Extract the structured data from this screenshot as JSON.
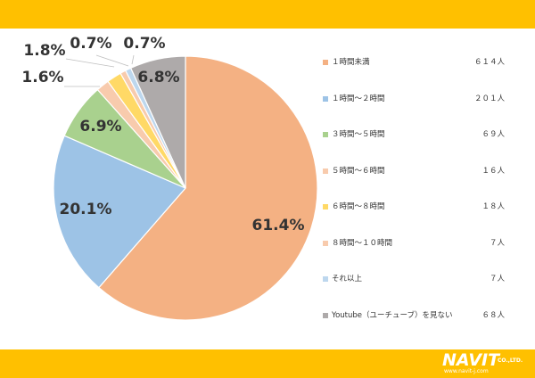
{
  "chart_data": {
    "type": "pie",
    "title": "",
    "start_angle_deg": 0,
    "direction": "clockwise",
    "slices": [
      {
        "label": "１時間未満",
        "count_label": "６１４人",
        "value": 61.4,
        "pct_label": "61.4%",
        "color": "#f4b183"
      },
      {
        "label": "１時間～２時間",
        "count_label": "２０１人",
        "value": 20.1,
        "pct_label": "20.1%",
        "color": "#9dc3e6"
      },
      {
        "label": "３時間～５時間",
        "count_label": "６９人",
        "value": 6.9,
        "pct_label": "6.9%",
        "color": "#a9d18e"
      },
      {
        "label": "５時間～６時間",
        "count_label": "１６人",
        "value": 1.6,
        "pct_label": "1.6%",
        "color": "#f8cbad"
      },
      {
        "label": "６時間～８時間",
        "count_label": "１８人",
        "value": 1.8,
        "pct_label": "1.8%",
        "color": "#ffd966"
      },
      {
        "label": "８時間～１０時間",
        "count_label": "７人",
        "value": 0.7,
        "pct_label": "0.7%",
        "color": "#f8cbad"
      },
      {
        "label": "それ以上",
        "count_label": "７人",
        "value": 0.7,
        "pct_label": "0.7%",
        "color": "#bdd7ee"
      },
      {
        "label": "Youtube（ユーチューブ）を見ない",
        "count_label": "６８人",
        "value": 6.8,
        "pct_label": "6.8%",
        "color": "#aeaaaa"
      }
    ],
    "legend_placement": "right"
  },
  "logo": {
    "name": "NAVIT",
    "company": "CO.,LTD.",
    "url": "www.navit-j.com"
  },
  "colors": {
    "band": "#ffc000",
    "text": "#333333"
  }
}
